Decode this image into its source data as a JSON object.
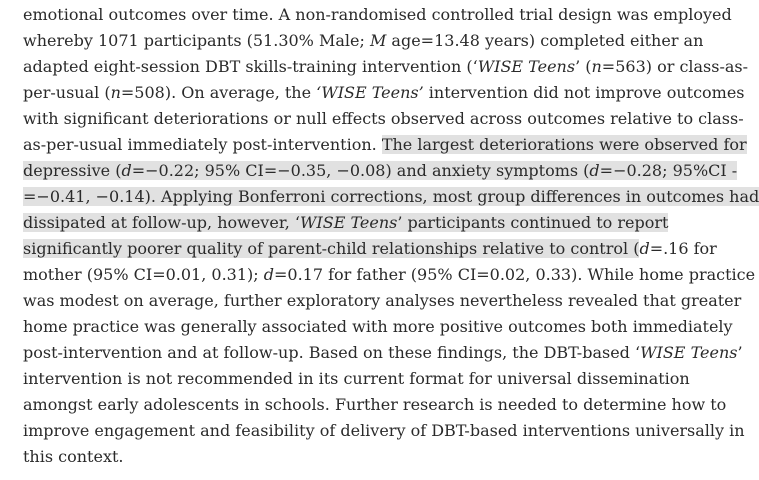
{
  "highlight_color": "#e1e1e1",
  "abstract": {
    "lines": [
      [
        {
          "t": "emotional outcomes over time. A non-randomised controlled trial design was employed"
        }
      ],
      [
        {
          "t": "whereby 1071 participants (51.30% Male; "
        },
        {
          "t": "M",
          "i": true
        },
        {
          "t": " age=13.48 years) completed either an"
        }
      ],
      [
        {
          "t": "adapted eight-session DBT skills-training intervention (‘"
        },
        {
          "t": "WISE Teens",
          "i": true
        },
        {
          "t": "’ ("
        },
        {
          "t": "n",
          "i": true
        },
        {
          "t": "=563) or class-as-"
        }
      ],
      [
        {
          "t": "per-usual ("
        },
        {
          "t": "n",
          "i": true
        },
        {
          "t": "=508). On average, the "
        },
        {
          "t": "‘WISE Teens’",
          "i": true
        },
        {
          "t": " intervention did not improve outcomes"
        }
      ],
      [
        {
          "t": "with significant deteriorations or null effects observed across outcomes relative to class-"
        }
      ],
      [
        {
          "t": "as-per-usual immediately post-intervention. "
        },
        {
          "t": "The largest deteriorations were observed for",
          "h": true
        }
      ],
      [
        {
          "t": "depressive (",
          "h": true
        },
        {
          "t": "d",
          "i": true,
          "h": true
        },
        {
          "t": "=−0.22; 95% CI=−0.35, −0.08) and anxiety symptoms (",
          "h": true
        },
        {
          "t": "d",
          "i": true,
          "h": true
        },
        {
          "t": "=−0.28; 95%CI -",
          "h": true
        }
      ],
      [
        {
          "t": "=−0.41, −0.14). Applying Bonferroni corrections, most group differences in outcomes had",
          "h": true
        }
      ],
      [
        {
          "t": "dissipated at follow-up, however, ‘",
          "h": true
        },
        {
          "t": "WISE Teens",
          "i": true,
          "h": true
        },
        {
          "t": "’ participants continued to report",
          "h": true
        }
      ],
      [
        {
          "t": "significantly poorer quality of parent-child relationships relative to control (",
          "h": true
        },
        {
          "t": "d",
          "i": true
        },
        {
          "t": "=.16 for"
        }
      ],
      [
        {
          "t": "mother (95% CI=0.01, 0.31); "
        },
        {
          "t": "d",
          "i": true
        },
        {
          "t": "=0.17 for father (95% CI=0.02, 0.33). While home practice"
        }
      ],
      [
        {
          "t": "was modest on average, further exploratory analyses nevertheless revealed that greater"
        }
      ],
      [
        {
          "t": "home practice was generally associated with more positive outcomes both immediately"
        }
      ],
      [
        {
          "t": "post-intervention and at follow-up. Based on these findings, the DBT-based ‘"
        },
        {
          "t": "WISE Teens",
          "i": true
        },
        {
          "t": "’"
        }
      ],
      [
        {
          "t": "intervention is not recommended in its current format for universal dissemination"
        }
      ],
      [
        {
          "t": "amongst early adolescents in schools. Further research is needed to determine how to"
        }
      ],
      [
        {
          "t": "improve engagement and feasibility of delivery of DBT-based interventions universally in"
        }
      ],
      [
        {
          "t": "this context."
        }
      ]
    ]
  }
}
